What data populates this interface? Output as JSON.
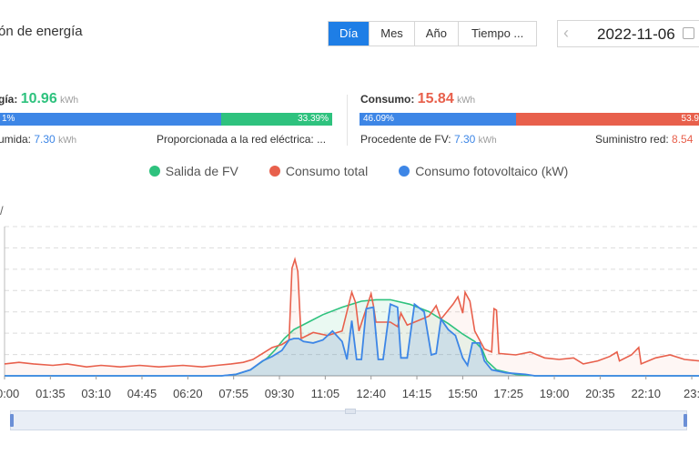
{
  "header": {
    "title": "ón de energía",
    "period_tabs": [
      {
        "label": "Día",
        "active": true
      },
      {
        "label": "Mes",
        "active": false
      },
      {
        "label": "Año",
        "active": false
      },
      {
        "label": "Tiempo ...",
        "active": false
      }
    ],
    "date": "2022-11-06"
  },
  "production": {
    "label": "gía:",
    "value": "10.96",
    "unit": "kWh",
    "bar_left_label": "1%",
    "bar_right_label": "33.39%",
    "bar_split_fraction": 0.6661,
    "consumed_label": "umida:",
    "consumed_value": "7.30",
    "consumed_unit": "kWh",
    "grid_label": "Proporcionada a la red eléctrica: ..."
  },
  "consumption": {
    "label": "Consumo:",
    "value": "15.84",
    "unit": "kWh",
    "bar_left_label": "46.09%",
    "bar_right_label": "53.9",
    "bar_split_fraction": 0.4609,
    "from_pv_label": "Procedente de FV:",
    "from_pv_value": "7.30",
    "from_pv_unit": "kWh",
    "grid_label": "Suministro red:",
    "grid_value": "8.54"
  },
  "colors": {
    "pv": "#2ec27e",
    "consumption": "#e8604c",
    "pv_consumption": "#3d86e6",
    "active_tab": "#1e7ee6"
  },
  "icons": {
    "prev": "chevron-left-icon",
    "calendar": "calendar-icon"
  },
  "chart_data": {
    "type": "line",
    "ylabel": "/",
    "legend": [
      "Salida de FV",
      "Consumo total",
      "Consumo fotovoltaico (kW)"
    ],
    "x_ticks": [
      "00:00",
      "01:35",
      "03:10",
      "04:45",
      "06:20",
      "07:55",
      "09:30",
      "11:05",
      "12:40",
      "14:15",
      "15:50",
      "17:25",
      "19:00",
      "20:35",
      "22:10",
      "23:"
    ],
    "x_range_minutes": [
      0,
      1440
    ],
    "y_range": [
      0,
      1
    ],
    "series": [
      {
        "name": "Salida de FV",
        "color": "#2ec27e",
        "points": [
          [
            0,
            0
          ],
          [
            450,
            0
          ],
          [
            480,
            0.01
          ],
          [
            510,
            0.04
          ],
          [
            545,
            0.12
          ],
          [
            560,
            0.17
          ],
          [
            580,
            0.25
          ],
          [
            600,
            0.31
          ],
          [
            630,
            0.36
          ],
          [
            660,
            0.41
          ],
          [
            700,
            0.46
          ],
          [
            740,
            0.5
          ],
          [
            770,
            0.51
          ],
          [
            800,
            0.51
          ],
          [
            840,
            0.48
          ],
          [
            880,
            0.43
          ],
          [
            920,
            0.35
          ],
          [
            950,
            0.28
          ],
          [
            975,
            0.23
          ],
          [
            990,
            0.18
          ],
          [
            1000,
            0.1
          ],
          [
            1020,
            0.04
          ],
          [
            1060,
            0.01
          ],
          [
            1100,
            0
          ],
          [
            1440,
            0
          ]
        ]
      },
      {
        "name": "Consumo total",
        "color": "#e8604c",
        "points": [
          [
            0,
            0.08
          ],
          [
            30,
            0.09
          ],
          [
            60,
            0.08
          ],
          [
            100,
            0.07
          ],
          [
            130,
            0.08
          ],
          [
            170,
            0.06
          ],
          [
            200,
            0.07
          ],
          [
            240,
            0.06
          ],
          [
            280,
            0.07
          ],
          [
            320,
            0.06
          ],
          [
            370,
            0.07
          ],
          [
            410,
            0.06
          ],
          [
            440,
            0.07
          ],
          [
            470,
            0.08
          ],
          [
            495,
            0.09
          ],
          [
            515,
            0.11
          ],
          [
            535,
            0.15
          ],
          [
            555,
            0.19
          ],
          [
            575,
            0.21
          ],
          [
            590,
            0.24
          ],
          [
            596,
            0.72
          ],
          [
            602,
            0.78
          ],
          [
            608,
            0.7
          ],
          [
            615,
            0.25
          ],
          [
            640,
            0.29
          ],
          [
            670,
            0.27
          ],
          [
            700,
            0.3
          ],
          [
            720,
            0.56
          ],
          [
            728,
            0.49
          ],
          [
            735,
            0.3
          ],
          [
            760,
            0.55
          ],
          [
            765,
            0.47
          ],
          [
            770,
            0.36
          ],
          [
            800,
            0.36
          ],
          [
            815,
            0.33
          ],
          [
            822,
            0.42
          ],
          [
            835,
            0.34
          ],
          [
            850,
            0.36
          ],
          [
            880,
            0.4
          ],
          [
            895,
            0.47
          ],
          [
            905,
            0.38
          ],
          [
            930,
            0.48
          ],
          [
            940,
            0.53
          ],
          [
            950,
            0.42
          ],
          [
            955,
            0.56
          ],
          [
            965,
            0.5
          ],
          [
            975,
            0.3
          ],
          [
            995,
            0.18
          ],
          [
            1010,
            0.16
          ],
          [
            1015,
            0.45
          ],
          [
            1020,
            0.44
          ],
          [
            1025,
            0.15
          ],
          [
            1060,
            0.14
          ],
          [
            1090,
            0.16
          ],
          [
            1120,
            0.12
          ],
          [
            1150,
            0.11
          ],
          [
            1180,
            0.12
          ],
          [
            1200,
            0.08
          ],
          [
            1230,
            0.1
          ],
          [
            1255,
            0.13
          ],
          [
            1270,
            0.16
          ],
          [
            1275,
            0.1
          ],
          [
            1300,
            0.14
          ],
          [
            1315,
            0.19
          ],
          [
            1320,
            0.08
          ],
          [
            1350,
            0.12
          ],
          [
            1380,
            0.14
          ],
          [
            1410,
            0.11
          ],
          [
            1440,
            0.1
          ]
        ]
      },
      {
        "name": "Consumo fotovoltaico (kW)",
        "color": "#3d86e6",
        "points": [
          [
            0,
            0
          ],
          [
            450,
            0
          ],
          [
            480,
            0.01
          ],
          [
            510,
            0.04
          ],
          [
            535,
            0.1
          ],
          [
            555,
            0.13
          ],
          [
            575,
            0.17
          ],
          [
            590,
            0.24
          ],
          [
            600,
            0.25
          ],
          [
            610,
            0.25
          ],
          [
            620,
            0.23
          ],
          [
            640,
            0.22
          ],
          [
            660,
            0.24
          ],
          [
            680,
            0.3
          ],
          [
            700,
            0.23
          ],
          [
            710,
            0.11
          ],
          [
            720,
            0.37
          ],
          [
            730,
            0.11
          ],
          [
            740,
            0.11
          ],
          [
            750,
            0.45
          ],
          [
            765,
            0.46
          ],
          [
            775,
            0.11
          ],
          [
            785,
            0.11
          ],
          [
            800,
            0.48
          ],
          [
            815,
            0.46
          ],
          [
            822,
            0.12
          ],
          [
            835,
            0.12
          ],
          [
            850,
            0.48
          ],
          [
            870,
            0.43
          ],
          [
            885,
            0.14
          ],
          [
            895,
            0.15
          ],
          [
            905,
            0.38
          ],
          [
            920,
            0.31
          ],
          [
            935,
            0.27
          ],
          [
            950,
            0.12
          ],
          [
            960,
            0.07
          ],
          [
            970,
            0.22
          ],
          [
            985,
            0.22
          ],
          [
            995,
            0.1
          ],
          [
            1010,
            0.04
          ],
          [
            1040,
            0.02
          ],
          [
            1080,
            0.01
          ],
          [
            1100,
            0
          ],
          [
            1440,
            0
          ]
        ]
      }
    ]
  }
}
